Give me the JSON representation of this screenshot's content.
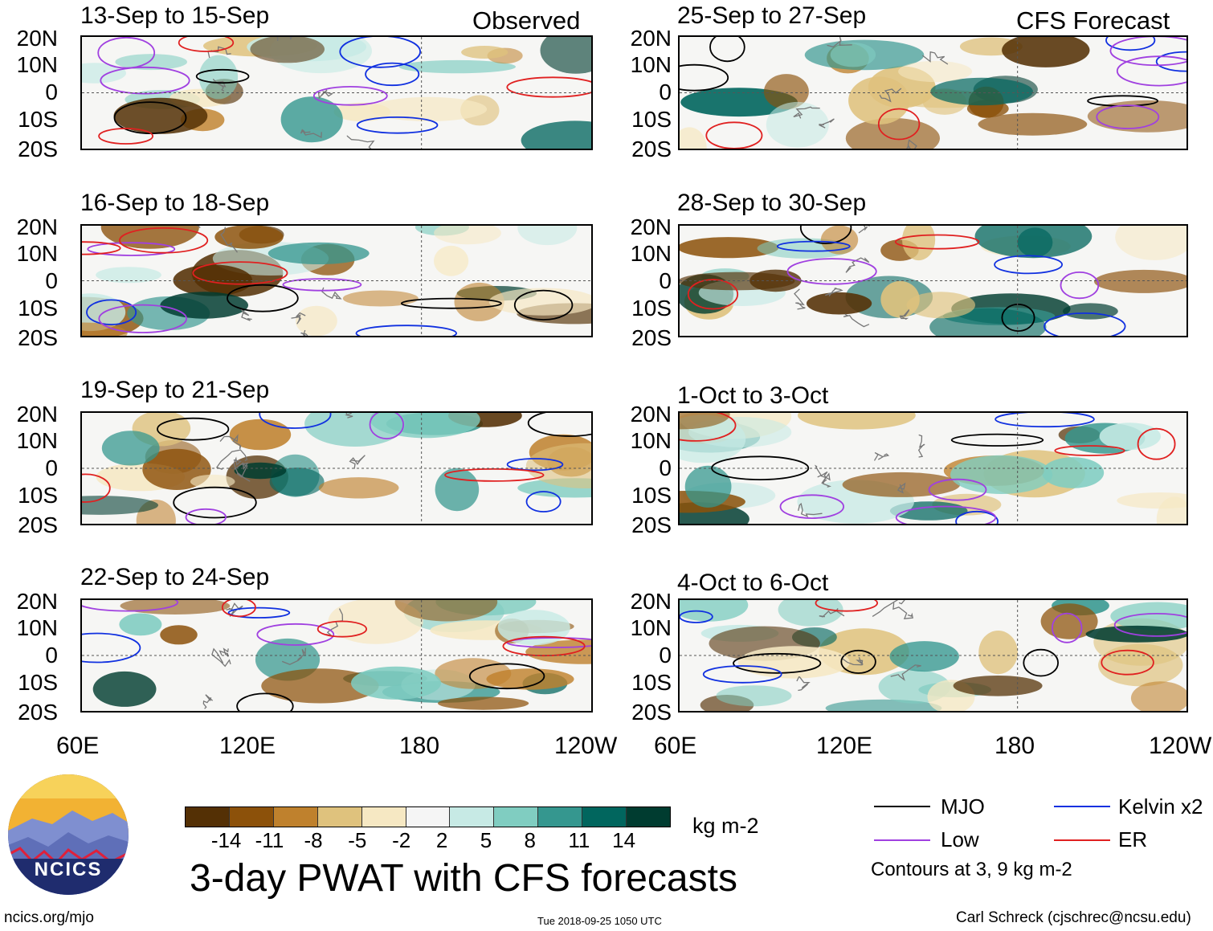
{
  "headings": {
    "observed": "Observed",
    "forecast": "CFS Forecast"
  },
  "panels": [
    {
      "title": "13-Sep to 15-Sep",
      "col": 0,
      "row": 0
    },
    {
      "title": "16-Sep to 18-Sep",
      "col": 0,
      "row": 1
    },
    {
      "title": "19-Sep to 21-Sep",
      "col": 0,
      "row": 2
    },
    {
      "title": "22-Sep to 24-Sep",
      "col": 0,
      "row": 3
    },
    {
      "title": "25-Sep to 27-Sep",
      "col": 1,
      "row": 0
    },
    {
      "title": "28-Sep to 30-Sep",
      "col": 1,
      "row": 1
    },
    {
      "title": "1-Oct to 3-Oct",
      "col": 1,
      "row": 2
    },
    {
      "title": "4-Oct to 6-Oct",
      "col": 1,
      "row": 3
    }
  ],
  "lat_labels": [
    "20N",
    "10N",
    "0",
    "10S",
    "20S"
  ],
  "lon_labels": [
    "60E",
    "120E",
    "180",
    "120W"
  ],
  "colorbar": {
    "colors": [
      "#543005",
      "#8c510a",
      "#bf812d",
      "#dfc27d",
      "#f6e8c3",
      "#f5f5f5",
      "#c7eae5",
      "#80cdc1",
      "#35978f",
      "#01665e",
      "#003c30"
    ],
    "ticks": [
      "-14",
      "-11",
      "-8",
      "-5",
      "-2",
      "2",
      "5",
      "8",
      "11",
      "14"
    ],
    "unit": "kg m-2"
  },
  "legend": {
    "items": [
      {
        "label": "MJO",
        "color": "#000000"
      },
      {
        "label": "Kelvin x2",
        "color": "#1030e0"
      },
      {
        "label": "Low",
        "color": "#a040e0"
      },
      {
        "label": "ER",
        "color": "#e02020"
      }
    ],
    "note": "Contours at 3, 9 kg m-2"
  },
  "title": "3-day PWAT with CFS forecasts",
  "logo_text": "NCICS",
  "footer": {
    "left": "ncics.org/mjo",
    "center": "Tue 2018-09-25 1050 UTC",
    "right": "Carl Schreck (cjschrec@ncsu.edu)"
  }
}
